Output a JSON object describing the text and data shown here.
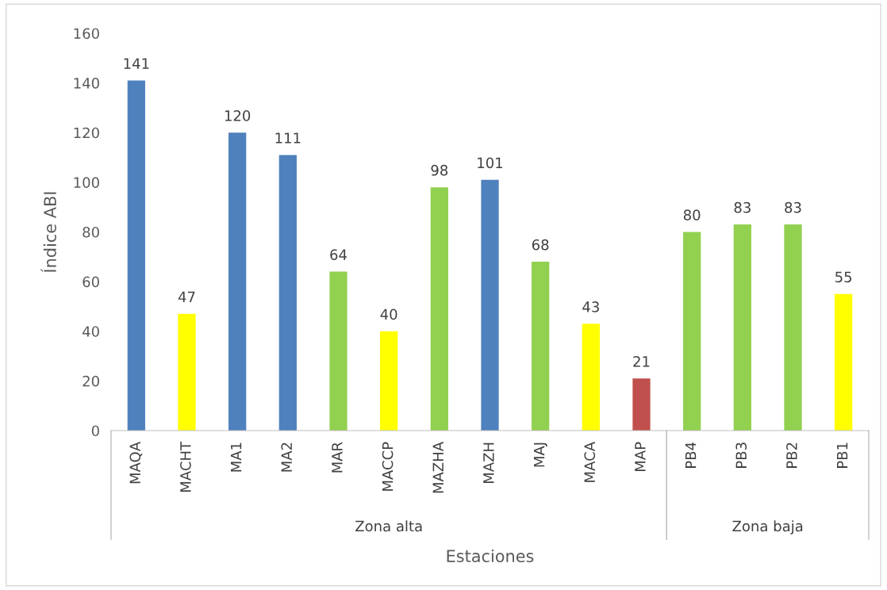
{
  "chart_data": [
    {
      "type": "bar",
      "xlabel": "Estaciones",
      "ylabel": "Índice ABI",
      "categories": [
        "MAQA",
        "MACHT",
        "MA1",
        "MA2",
        "MAR",
        "MACCP",
        "MAZHA",
        "MAZH",
        "MAJ",
        "MACA",
        "MAP"
      ],
      "values": [
        141,
        47,
        120,
        111,
        64,
        40,
        98,
        101,
        68,
        43,
        21
      ],
      "colors": [
        "#4f81bd",
        "#ffff00",
        "#4f81bd",
        "#4f81bd",
        "#92d050",
        "#ffff00",
        "#92d050",
        "#4f81bd",
        "#92d050",
        "#ffff00",
        "#c0504d"
      ],
      "ylim": [
        0,
        160
      ],
      "yticks": [
        0,
        20,
        40,
        60,
        80,
        100,
        120,
        140,
        160
      ],
      "data_labels": true,
      "grid": false,
      "annotations": [
        "Zona alta"
      ]
    },
    {
      "type": "bar",
      "categories": [
        "PB4",
        "PB3",
        "PB2",
        "PB1"
      ],
      "values": [
        80,
        83,
        83,
        55
      ],
      "colors": [
        "#92d050",
        "#92d050",
        "#92d050",
        "#ffff00"
      ],
      "ylim": [
        0,
        160
      ],
      "tick_labels": "x",
      "data_labels": true,
      "grid": false,
      "annotations": [
        "Zona baja"
      ]
    }
  ]
}
